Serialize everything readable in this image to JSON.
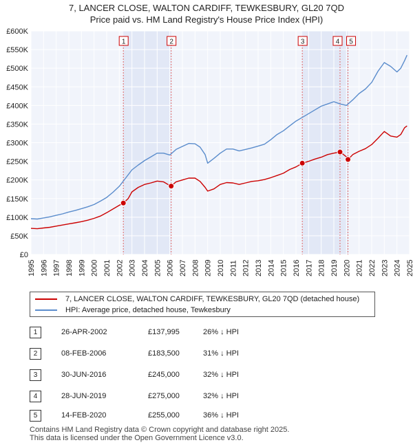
{
  "chart_data": {
    "type": "line",
    "title": "7, LANCER CLOSE, WALTON CARDIFF, TEWKESBURY, GL20 7QD",
    "subtitle": "Price paid vs. HM Land Registry's House Price Index (HPI)",
    "xlim": [
      1995,
      2025
    ],
    "ylim": [
      0,
      600000
    ],
    "x_ticks": [
      "1995",
      "1996",
      "1997",
      "1998",
      "1999",
      "2000",
      "2001",
      "2002",
      "2003",
      "2004",
      "2005",
      "2006",
      "2007",
      "2008",
      "2009",
      "2010",
      "2011",
      "2012",
      "2013",
      "2014",
      "2015",
      "2016",
      "2017",
      "2018",
      "2019",
      "2020",
      "2021",
      "2022",
      "2023",
      "2024",
      "2025"
    ],
    "y_ticks": [
      {
        "value": 0,
        "label": "£0"
      },
      {
        "value": 50000,
        "label": "£50K"
      },
      {
        "value": 100000,
        "label": "£100K"
      },
      {
        "value": 150000,
        "label": "£150K"
      },
      {
        "value": 200000,
        "label": "£200K"
      },
      {
        "value": 250000,
        "label": "£250K"
      },
      {
        "value": 300000,
        "label": "£300K"
      },
      {
        "value": 350000,
        "label": "£350K"
      },
      {
        "value": 400000,
        "label": "£400K"
      },
      {
        "value": 450000,
        "label": "£450K"
      },
      {
        "value": 500000,
        "label": "£500K"
      },
      {
        "value": 550000,
        "label": "£550K"
      },
      {
        "value": 600000,
        "label": "£600K"
      }
    ],
    "series": [
      {
        "name": "7, LANCER CLOSE, WALTON CARDIFF, TEWKESBURY, GL20 7QD (detached house)",
        "color": "#cc0000",
        "x": [
          1995,
          1995.5,
          1996,
          1996.5,
          1997,
          1997.5,
          1998,
          1998.5,
          1999,
          1999.5,
          2000,
          2000.5,
          2001,
          2001.5,
          2002,
          2002.33,
          2002.7,
          2003,
          2003.5,
          2004,
          2004.5,
          2005,
          2005.5,
          2006,
          2006.1,
          2006.5,
          2007,
          2007.5,
          2008,
          2008.4,
          2008.8,
          2009,
          2009.5,
          2010,
          2010.5,
          2011,
          2011.5,
          2012,
          2012.5,
          2013,
          2013.5,
          2014,
          2014.5,
          2015,
          2015.5,
          2016,
          2016.5,
          2017,
          2017.5,
          2018,
          2018.5,
          2019,
          2019.5,
          2020,
          2020.13,
          2020.5,
          2021,
          2021.5,
          2022,
          2022.5,
          2023,
          2023.5,
          2024,
          2024.3,
          2024.6,
          2024.8
        ],
        "values": [
          70000,
          69000,
          71000,
          73000,
          76000,
          79000,
          82000,
          85000,
          88000,
          92000,
          97000,
          103000,
          112000,
          122000,
          132000,
          138000,
          150000,
          168000,
          180000,
          188000,
          192000,
          197000,
          195000,
          185000,
          183500,
          195000,
          200000,
          205000,
          205000,
          196000,
          180000,
          170000,
          176000,
          188000,
          193000,
          192000,
          188000,
          192000,
          196000,
          198000,
          201000,
          206000,
          212000,
          218000,
          228000,
          235000,
          245000,
          250000,
          256000,
          261000,
          268000,
          272000,
          275000,
          262000,
          255000,
          268000,
          277000,
          284000,
          295000,
          312000,
          330000,
          318000,
          315000,
          322000,
          340000,
          345000
        ]
      },
      {
        "name": "HPI: Average price, detached house, Tewkesbury",
        "color": "#5a8ccc",
        "x": [
          1995,
          1995.5,
          1996,
          1996.5,
          1997,
          1997.5,
          1998,
          1998.5,
          1999,
          1999.5,
          2000,
          2000.5,
          2001,
          2001.5,
          2002,
          2002.5,
          2003,
          2003.5,
          2004,
          2004.5,
          2005,
          2005.5,
          2006,
          2006.5,
          2007,
          2007.5,
          2008,
          2008.4,
          2008.8,
          2009,
          2009.5,
          2010,
          2010.5,
          2011,
          2011.5,
          2012,
          2012.5,
          2013,
          2013.5,
          2014,
          2014.5,
          2015,
          2015.5,
          2016,
          2016.5,
          2017,
          2017.5,
          2018,
          2018.5,
          2019,
          2019.5,
          2020,
          2020.5,
          2021,
          2021.5,
          2022,
          2022.5,
          2023,
          2023.5,
          2024,
          2024.3,
          2024.6,
          2024.8
        ],
        "values": [
          96000,
          95000,
          98000,
          101000,
          105000,
          109000,
          114000,
          118000,
          123000,
          128000,
          134000,
          143000,
          153000,
          167000,
          183000,
          205000,
          227000,
          240000,
          252000,
          262000,
          272000,
          272000,
          267000,
          282000,
          290000,
          298000,
          297000,
          288000,
          268000,
          245000,
          258000,
          272000,
          283000,
          283000,
          278000,
          282000,
          286000,
          291000,
          296000,
          308000,
          322000,
          332000,
          345000,
          358000,
          368000,
          378000,
          388000,
          398000,
          404000,
          410000,
          404000,
          400000,
          415000,
          432000,
          444000,
          462000,
          492000,
          515000,
          505000,
          490000,
          500000,
          520000,
          535000
        ]
      }
    ],
    "transactions": [
      {
        "label": "1",
        "date": "26-APR-2002",
        "x": 2002.32,
        "price": "£137,995",
        "value": 137995,
        "hpi": "26% ↓ HPI"
      },
      {
        "label": "2",
        "date": "08-FEB-2006",
        "x": 2006.11,
        "price": "£183,500",
        "value": 183500,
        "hpi": "31% ↓ HPI"
      },
      {
        "label": "3",
        "date": "30-JUN-2016",
        "x": 2016.5,
        "price": "£245,000",
        "value": 245000,
        "hpi": "32% ↓ HPI"
      },
      {
        "label": "4",
        "date": "28-JUN-2019",
        "x": 2019.49,
        "price": "£275,000",
        "value": 275000,
        "hpi": "32% ↓ HPI"
      },
      {
        "label": "5",
        "date": "14-FEB-2020",
        "x": 2020.12,
        "price": "£255,000",
        "value": 255000,
        "hpi": "36% ↓ HPI"
      }
    ],
    "shade_ranges": [
      [
        2002.32,
        2006.11
      ],
      [
        2016.5,
        2020.12
      ]
    ]
  },
  "legend": {
    "property_label": "7, LANCER CLOSE, WALTON CARDIFF, TEWKESBURY, GL20 7QD (detached house)",
    "hpi_label": "HPI: Average price, detached house, Tewkesbury"
  },
  "footer": {
    "line1": "Contains HM Land Registry data © Crown copyright and database right 2025.",
    "line2": "This data is licensed under the Open Government Licence v3.0."
  }
}
